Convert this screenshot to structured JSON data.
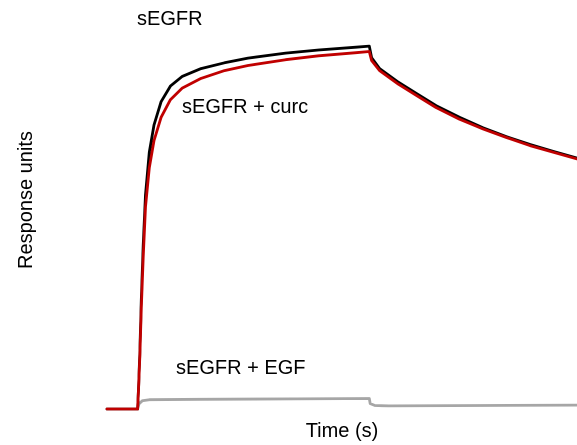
{
  "chart_data": {
    "type": "line",
    "title": "",
    "xlabel": "Time (s)",
    "ylabel": "Response units",
    "grid": false,
    "legend": "none",
    "xlim": [
      0,
      100
    ],
    "ylim": [
      0,
      100
    ],
    "series": [
      {
        "name": "sEGFR",
        "color": "#000000",
        "points": [
          [
            0,
            0
          ],
          [
            6.5,
            0
          ],
          [
            6.7,
            5
          ],
          [
            7,
            15
          ],
          [
            7.3,
            28
          ],
          [
            7.7,
            42
          ],
          [
            8.2,
            55
          ],
          [
            9,
            66
          ],
          [
            10,
            73
          ],
          [
            11.5,
            79
          ],
          [
            13.5,
            83
          ],
          [
            16,
            85.5
          ],
          [
            20,
            87.5
          ],
          [
            25,
            89
          ],
          [
            30,
            90.2
          ],
          [
            38,
            91.5
          ],
          [
            45,
            92.3
          ],
          [
            53,
            93
          ],
          [
            55.8,
            93.3
          ],
          [
            56.3,
            90.3
          ],
          [
            58,
            87.5
          ],
          [
            62,
            84
          ],
          [
            66,
            81
          ],
          [
            70,
            78
          ],
          [
            75,
            75
          ],
          [
            80,
            72.3
          ],
          [
            85,
            70
          ],
          [
            90,
            68
          ],
          [
            95,
            66.2
          ],
          [
            100,
            64.5
          ]
        ]
      },
      {
        "name": "sEGFR + curc",
        "color": "#c00000",
        "points": [
          [
            0,
            0
          ],
          [
            6.5,
            0
          ],
          [
            6.7,
            5
          ],
          [
            7,
            14
          ],
          [
            7.3,
            26
          ],
          [
            7.7,
            39
          ],
          [
            8.2,
            52
          ],
          [
            9,
            62
          ],
          [
            10,
            69
          ],
          [
            11.5,
            75
          ],
          [
            13.5,
            79.5
          ],
          [
            16,
            82.5
          ],
          [
            20,
            85
          ],
          [
            25,
            87
          ],
          [
            30,
            88.3
          ],
          [
            38,
            89.8
          ],
          [
            45,
            90.8
          ],
          [
            53,
            91.6
          ],
          [
            55.8,
            91.9
          ],
          [
            56.3,
            89.6
          ],
          [
            58,
            87
          ],
          [
            62,
            83.5
          ],
          [
            66,
            80.5
          ],
          [
            70,
            77.5
          ],
          [
            75,
            74.5
          ],
          [
            80,
            72
          ],
          [
            85,
            69.8
          ],
          [
            90,
            67.7
          ],
          [
            95,
            66
          ],
          [
            100,
            64.3
          ]
        ]
      },
      {
        "name": "sEGFR + EGF",
        "color": "#a6a6a6",
        "points": [
          [
            0,
            0
          ],
          [
            6.5,
            0
          ],
          [
            6.8,
            1.3
          ],
          [
            7.5,
            2.1
          ],
          [
            9,
            2.4
          ],
          [
            20,
            2.5
          ],
          [
            40,
            2.6
          ],
          [
            55.8,
            2.7
          ],
          [
            56,
            1.4
          ],
          [
            57,
            0.9
          ],
          [
            60,
            0.8
          ],
          [
            80,
            0.9
          ],
          [
            100,
            1
          ]
        ]
      }
    ],
    "annotations": [
      {
        "text": "sEGFR",
        "series": "sEGFR"
      },
      {
        "text": "sEGFR + curc",
        "series": "sEGFR + curc"
      },
      {
        "text": "sEGFR + EGF",
        "series": "sEGFR + EGF"
      }
    ]
  }
}
